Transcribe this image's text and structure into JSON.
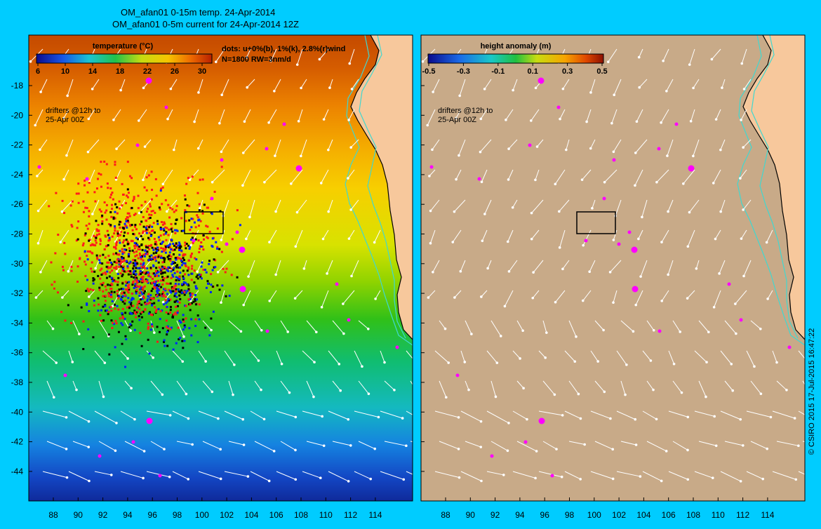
{
  "header": {
    "line1": "OM_afan01 0-15m temp. 24-Apr-2014",
    "line2": "OM_afan01 0-5m current for 24-Apr-2014 12Z"
  },
  "left_panel": {
    "colorbar_title": "temperature (°C)",
    "colorbar_ticks": [
      "6",
      "10",
      "14",
      "18",
      "22",
      "26",
      "30"
    ],
    "dots_note_1": "dots: u+0%(b), 1%(k), 2.8%(r)wind",
    "dots_note_2": "N=1800 RW=3nm/d",
    "drifters_1": "drifters @12h to",
    "drifters_2": "25-Apr 00Z"
  },
  "right_panel": {
    "colorbar_title": "height anomaly  (m)",
    "colorbar_ticks": [
      "-0.5",
      "-0.3",
      "-0.1",
      "0.1",
      "0.3",
      "0.5"
    ],
    "drifters_1": "drifters @12h to",
    "drifters_2": "25-Apr 00Z"
  },
  "axes": {
    "lon_labels": [
      "88",
      "90",
      "92",
      "94",
      "96",
      "98",
      "100",
      "102",
      "104",
      "106",
      "108",
      "110",
      "112",
      "114"
    ],
    "lat_labels": [
      "-18",
      "-20",
      "-22",
      "-24",
      "-26",
      "-28",
      "-30",
      "-32",
      "-34",
      "-36",
      "-38",
      "-40",
      "-42",
      "-44"
    ]
  },
  "credit": "© CSIRO 2015  17-Jul-2015 16:47:22",
  "colors": {
    "frame": "#00ccff",
    "land": "#f7c89c",
    "height_background": "#c8aa88",
    "coast": "#000000",
    "isobath": "#40d8d0",
    "vectors": "#ffffff",
    "eddy_markers": "#ff00ff",
    "drifter_blue": "#0022ff",
    "drifter_black": "#000000",
    "drifter_red": "#ff1a1a"
  }
}
